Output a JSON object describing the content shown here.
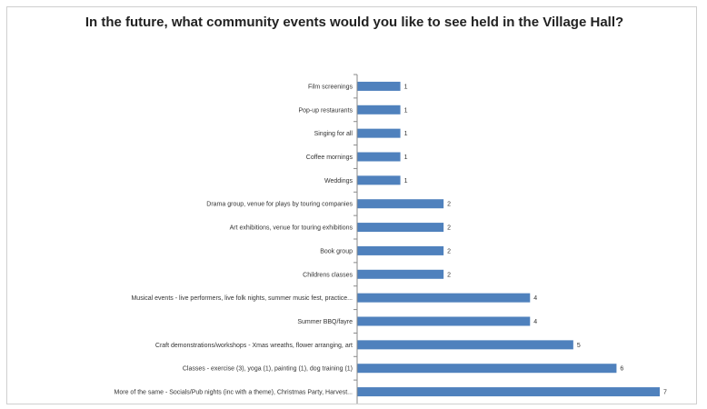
{
  "chart_data": {
    "type": "bar",
    "orientation": "horizontal",
    "title": "In the future, what community events would you like to see held in the Village Hall?",
    "categories": [
      "Film screenings",
      "Pop-up restaurants",
      "Singing for all",
      "Coffee mornings",
      "Weddings",
      "Drama group, venue for plays by touring companies",
      "Art exhibitions, venue for touring exhibitions",
      "Book group",
      "Childrens classes",
      "Musical events - live performers, live folk nights, summer music fest, practice...",
      "Summer BBQ/fayre",
      "Craft demonstrations/workshops - Xmas wreaths, flower arranging, art",
      "Classes - exercise (3), yoga (1), painting (1), dog training (1)",
      "More of the same - Socials/Pub nights (inc with a theme), Christmas Party, Harvest..."
    ],
    "values": [
      1,
      1,
      1,
      1,
      1,
      2,
      2,
      2,
      2,
      4,
      4,
      5,
      6,
      7
    ],
    "xlim": [
      0,
      7
    ],
    "grid": false,
    "legend": "none",
    "bar_color": "#4f81bd"
  }
}
